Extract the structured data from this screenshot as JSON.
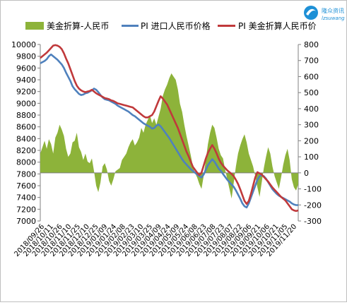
{
  "chart_data": {
    "type": "line",
    "legend": [
      "美金折算-人民币",
      "PI 进口人民币价格",
      "PI 美金折算人民币价"
    ],
    "logo": {
      "text": "隆众资讯",
      "sub": "lzsuwang"
    },
    "colors": {
      "area": "#8DB33A",
      "blue": "#4F81BD",
      "red": "#C0393B"
    },
    "left_axis": {
      "min": 7000,
      "max": 10000,
      "step": 200
    },
    "right_axis": {
      "min": -300,
      "max": 800,
      "step": 100
    },
    "x_labels": [
      "2018/09/26",
      "2018/10/11",
      "2018/10/26",
      "2018/11/10",
      "2018/11/25",
      "2018/12/10",
      "2018/12/25",
      "2019/01/09",
      "2019/01/24",
      "2019/02/08",
      "2019/02/23",
      "2019/03/10",
      "2019/03/25",
      "2019/04/09",
      "2019/04/24",
      "2019/05/09",
      "2019/05/24",
      "2019/06/08",
      "2019/06/23",
      "2019/07/08",
      "2019/07/23",
      "2019/08/07",
      "2019/08/22",
      "2019/09/06",
      "2019/09/21",
      "2019/10/06",
      "2019/10/21",
      "2019/11/05",
      "2019/11/20"
    ],
    "series": [
      {
        "name": "美金折算-人民币",
        "axis": "right",
        "type": "area",
        "values": [
          120,
          160,
          200,
          150,
          210,
          180,
          120,
          220,
          250,
          300,
          270,
          230,
          150,
          100,
          120,
          190,
          200,
          250,
          160,
          130,
          80,
          120,
          70,
          60,
          90,
          10,
          -80,
          -120,
          -60,
          40,
          60,
          20,
          -50,
          -80,
          -40,
          10,
          20,
          30,
          80,
          100,
          120,
          160,
          190,
          210,
          170,
          190,
          220,
          280,
          250,
          300,
          330,
          360,
          310,
          340,
          300,
          350,
          400,
          480,
          520,
          550,
          590,
          620,
          600,
          580,
          520,
          430,
          380,
          300,
          230,
          170,
          110,
          40,
          0,
          -30,
          -70,
          -100,
          -20,
          80,
          180,
          250,
          300,
          280,
          220,
          150,
          110,
          90,
          20,
          -40,
          -100,
          -160,
          -60,
          40,
          120,
          170,
          210,
          240,
          190,
          120,
          80,
          40,
          -20,
          -90,
          -150,
          -60,
          30,
          100,
          160,
          120,
          40,
          -20,
          -60,
          -100,
          -30,
          50,
          110,
          150,
          80,
          -40,
          -90,
          -110,
          -70
        ]
      },
      {
        "name": "PI 进口人民币价格",
        "axis": "left",
        "type": "line",
        "values": [
          9680,
          9700,
          9720,
          9750,
          9800,
          9830,
          9800,
          9770,
          9740,
          9700,
          9660,
          9600,
          9520,
          9450,
          9380,
          9290,
          9240,
          9200,
          9160,
          9140,
          9150,
          9170,
          9180,
          9200,
          9220,
          9250,
          9230,
          9190,
          9140,
          9100,
          9070,
          9060,
          9050,
          9030,
          9010,
          8990,
          8960,
          8940,
          8920,
          8900,
          8880,
          8860,
          8830,
          8800,
          8780,
          8750,
          8720,
          8690,
          8660,
          8640,
          8620,
          8600,
          8570,
          8580,
          8620,
          8640,
          8610,
          8560,
          8510,
          8460,
          8410,
          8350,
          8290,
          8230,
          8170,
          8110,
          8050,
          8000,
          7960,
          7920,
          7880,
          7850,
          7820,
          7790,
          7760,
          7740,
          7790,
          7870,
          7950,
          8000,
          8050,
          8010,
          7950,
          7890,
          7850,
          7800,
          7750,
          7700,
          7660,
          7620,
          7580,
          7520,
          7450,
          7380,
          7300,
          7250,
          7230,
          7300,
          7400,
          7500,
          7600,
          7700,
          7760,
          7780,
          7760,
          7720,
          7660,
          7600,
          7540,
          7500,
          7460,
          7430,
          7410,
          7390,
          7370,
          7350,
          7330,
          7300,
          7280,
          7270,
          7270
        ]
      },
      {
        "name": "PI 美金折算人民币价",
        "axis": "left",
        "type": "line",
        "values": [
          9770,
          9800,
          9830,
          9860,
          9900,
          9940,
          9980,
          9990,
          9980,
          9960,
          9920,
          9850,
          9760,
          9680,
          9580,
          9480,
          9380,
          9300,
          9250,
          9220,
          9200,
          9190,
          9200,
          9210,
          9230,
          9200,
          9170,
          9150,
          9130,
          9110,
          9090,
          9080,
          9070,
          9050,
          9040,
          9020,
          9000,
          8990,
          8980,
          8970,
          8960,
          8950,
          8940,
          8930,
          8900,
          8870,
          8840,
          8810,
          8780,
          8760,
          8760,
          8780,
          8800,
          8860,
          8950,
          9040,
          9120,
          9080,
          9030,
          8980,
          8900,
          8820,
          8740,
          8660,
          8580,
          8480,
          8380,
          8280,
          8180,
          8100,
          8010,
          7920,
          7870,
          7820,
          7780,
          7820,
          7940,
          8060,
          8160,
          8230,
          8290,
          8230,
          8150,
          8060,
          7990,
          7940,
          7900,
          7860,
          7830,
          7800,
          7760,
          7700,
          7630,
          7540,
          7440,
          7340,
          7290,
          7340,
          7460,
          7600,
          7740,
          7830,
          7810,
          7790,
          7750,
          7710,
          7670,
          7620,
          7570,
          7530,
          7490,
          7450,
          7410,
          7380,
          7350,
          7300,
          7250,
          7200,
          7180,
          7170,
          7180
        ]
      }
    ]
  }
}
